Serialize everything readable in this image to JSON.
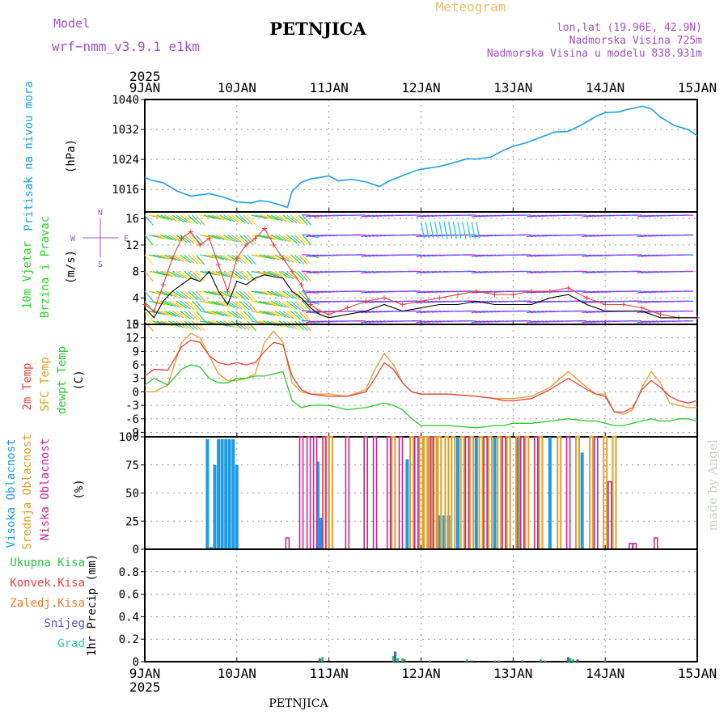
{
  "header": {
    "model_label": "Model",
    "model_name": "wrf−nmm_v3.9.1  e1km",
    "station_title": "PETNJICA",
    "meteogram_label": "Meteogram",
    "lonlat": "lon,lat (19.96E, 42.9N)",
    "altitude": "Nadmorska Visina 725m",
    "model_altitude": "Nadmorska Visina u modelu 838.931m",
    "year": "2025",
    "footer_station": "PETNJICA",
    "watermark": "made by Angel"
  },
  "colors": {
    "pressure": "#1ea0e6",
    "temp2m": "#e8403c",
    "sfc_temp": "#dca028",
    "dewpoint": "#28c828",
    "high_cloud": "#1e9be6",
    "mid_cloud": "#dca028",
    "low_cloud": "#c8288c",
    "precip_total": "#28c83c",
    "precip_conv": "#e8403c",
    "precip_frz": "#f0782a",
    "snow": "#5050dc",
    "hail": "#28c8b4",
    "wind_label": "#2ad22a",
    "grid": "#999999"
  },
  "chart_data": [
    {
      "type": "line",
      "panel": "pressure",
      "ylabels": [
        "Pritisak na nivou mora"
      ],
      "unit": "(hPa)",
      "x_ticks": [
        "9JAN",
        "10JAN",
        "11JAN",
        "12JAN",
        "13JAN",
        "14JAN",
        "15JAN"
      ],
      "xlim": [
        0,
        6
      ],
      "ylim": [
        1010,
        1040
      ],
      "y_ticks": [
        1016,
        1024,
        1032,
        1040
      ],
      "grid": true,
      "series": [
        {
          "x": [
            0,
            0.08,
            0.2,
            0.35,
            0.5,
            0.7,
            0.85,
            1.0,
            1.15,
            1.25,
            1.35,
            1.45,
            1.55,
            1.6,
            1.7,
            1.8,
            1.9,
            2.0,
            2.1,
            2.25,
            2.4,
            2.55,
            2.65,
            2.8,
            2.95,
            3.05,
            3.2,
            3.35,
            3.5,
            3.6,
            3.75,
            3.9,
            4.0,
            4.15,
            4.3,
            4.45,
            4.6,
            4.75,
            4.9,
            5.0,
            5.15,
            5.25,
            5.3,
            5.4,
            5.5,
            5.6,
            5.75,
            5.9,
            6.0
          ],
          "values": [
            1019.2,
            1018.4,
            1017.8,
            1015.6,
            1014.2,
            1014.9,
            1014.0,
            1012.7,
            1012.4,
            1013.0,
            1012.7,
            1012.0,
            1011.2,
            1015.5,
            1017.9,
            1018.8,
            1019.2,
            1019.6,
            1018.3,
            1018.7,
            1018.0,
            1016.8,
            1018.2,
            1019.7,
            1021.1,
            1021.6,
            1022.1,
            1023.1,
            1024.2,
            1024.1,
            1024.6,
            1026.5,
            1027.5,
            1028.5,
            1029.9,
            1031.3,
            1031.5,
            1033.3,
            1035.5,
            1036.5,
            1036.7,
            1037.4,
            1037.6,
            1038.2,
            1037.5,
            1035.3,
            1033.1,
            1032.0,
            1030.3
          ]
        }
      ]
    },
    {
      "type": "line",
      "panel": "wind",
      "ylabels": [
        "10m Vjetar",
        "Brzina i Pravac"
      ],
      "unit": "(m/s)",
      "compass": [
        "N",
        "W",
        "S",
        "E"
      ],
      "xlim": [
        0,
        6
      ],
      "ylim": [
        0,
        17
      ],
      "y_ticks": [
        0,
        4,
        8,
        12,
        16
      ],
      "grid": true,
      "series": [
        {
          "name": "speed",
          "x": [
            0,
            0.1,
            0.2,
            0.3,
            0.4,
            0.5,
            0.6,
            0.7,
            0.8,
            0.9,
            1.0,
            1.1,
            1.2,
            1.3,
            1.4,
            1.5,
            1.6,
            1.7,
            1.8,
            1.9,
            2.0,
            2.2,
            2.4,
            2.6,
            2.8,
            3.0,
            3.2,
            3.4,
            3.6,
            3.8,
            4.0,
            4.2,
            4.4,
            4.6,
            4.8,
            5.0,
            5.2,
            5.4,
            5.6,
            5.8,
            6.0
          ],
          "values": [
            2.5,
            1.0,
            3.5,
            5.0,
            6.0,
            7.0,
            6.5,
            8.0,
            5.0,
            3.0,
            6.5,
            6.0,
            7.0,
            7.5,
            7.2,
            7.0,
            5.0,
            4.0,
            2.5,
            1.5,
            1.0,
            1.5,
            2.0,
            3.0,
            2.0,
            2.5,
            3.0,
            3.0,
            3.5,
            3.0,
            3.0,
            3.0,
            4.0,
            4.5,
            3.0,
            2.0,
            2.0,
            2.0,
            1.0,
            1.0,
            1.0
          ]
        },
        {
          "name": "gust",
          "x": [
            0,
            0.1,
            0.2,
            0.3,
            0.4,
            0.5,
            0.6,
            0.7,
            0.8,
            0.9,
            1.0,
            1.1,
            1.2,
            1.3,
            1.4,
            1.5,
            1.6,
            1.7,
            1.8,
            1.9,
            2.0,
            2.2,
            2.4,
            2.6,
            2.8,
            3.0,
            3.2,
            3.4,
            3.6,
            3.8,
            4.0,
            4.2,
            4.4,
            4.6,
            4.8,
            5.0,
            5.2,
            5.4,
            5.6,
            5.8,
            6.0
          ],
          "values": [
            3.0,
            2.0,
            6.0,
            10.0,
            13.0,
            14.0,
            12.0,
            13.0,
            9.0,
            5.0,
            10.0,
            12.0,
            13.0,
            14.5,
            12.0,
            10.0,
            8.0,
            6.0,
            3.0,
            2.0,
            1.5,
            2.5,
            3.5,
            4.0,
            3.0,
            3.5,
            4.0,
            4.5,
            5.0,
            4.5,
            4.5,
            5.0,
            5.0,
            5.5,
            4.0,
            3.0,
            3.0,
            2.5,
            1.5,
            1.0,
            1.0
          ]
        }
      ],
      "wind_levels": [
        0.5,
        2,
        3.5,
        5,
        8,
        10.5,
        13.5,
        16.5
      ]
    },
    {
      "type": "line",
      "panel": "temperature",
      "ylabels": [
        "2m Temp",
        "SFC Temp",
        "dewpt Temp"
      ],
      "unit": "(C)",
      "xlim": [
        0,
        6
      ],
      "ylim": [
        -10,
        15
      ],
      "y_ticks": [
        -9,
        -6,
        -3,
        0,
        3,
        6,
        9,
        12,
        15
      ],
      "grid": true,
      "series": [
        {
          "name": "2m Temp",
          "x": [
            0,
            0.1,
            0.25,
            0.4,
            0.5,
            0.6,
            0.7,
            0.8,
            0.9,
            1.0,
            1.1,
            1.2,
            1.3,
            1.4,
            1.5,
            1.6,
            1.7,
            1.8,
            2.0,
            2.2,
            2.4,
            2.5,
            2.6,
            2.7,
            2.8,
            2.9,
            3.0,
            3.3,
            3.6,
            3.8,
            3.9,
            4.0,
            4.2,
            4.4,
            4.6,
            4.8,
            4.9,
            5.0,
            5.1,
            5.2,
            5.3,
            5.4,
            5.5,
            5.6,
            5.7,
            5.8,
            5.9,
            6.0
          ],
          "values": [
            3.5,
            5.0,
            4.8,
            10.0,
            11.5,
            11.0,
            8.0,
            6.5,
            6.0,
            6.5,
            6.0,
            6.5,
            9.0,
            11.0,
            10.5,
            3.5,
            0.5,
            -0.5,
            -1.0,
            -1.0,
            0.0,
            3.0,
            6.5,
            5.0,
            2.0,
            0.0,
            -0.5,
            -0.5,
            -1.0,
            -1.5,
            -2.0,
            -2.0,
            -1.5,
            0.5,
            3.0,
            0.5,
            -0.5,
            -1.0,
            -4.5,
            -4.5,
            -3.5,
            0.5,
            2.5,
            1.0,
            -1.0,
            -2.0,
            -2.5,
            -2.0
          ]
        },
        {
          "name": "SFC Temp",
          "x": [
            0,
            0.1,
            0.25,
            0.4,
            0.5,
            0.6,
            0.7,
            0.8,
            0.9,
            1.0,
            1.1,
            1.2,
            1.3,
            1.4,
            1.5,
            1.6,
            1.7,
            1.8,
            2.0,
            2.2,
            2.4,
            2.5,
            2.6,
            2.7,
            2.8,
            2.9,
            3.0,
            3.3,
            3.6,
            3.8,
            3.9,
            4.0,
            4.2,
            4.4,
            4.6,
            4.8,
            4.9,
            5.0,
            5.1,
            5.2,
            5.3,
            5.4,
            5.5,
            5.6,
            5.7,
            5.8,
            5.9,
            6.0
          ],
          "values": [
            0.0,
            0.0,
            1.5,
            11.0,
            13.0,
            12.0,
            8.0,
            4.0,
            2.5,
            2.5,
            3.0,
            4.0,
            11.0,
            13.5,
            11.0,
            2.0,
            0.0,
            -0.5,
            -0.5,
            -1.0,
            0.5,
            5.0,
            8.5,
            6.0,
            2.0,
            0.0,
            -0.5,
            -0.5,
            -1.0,
            -1.5,
            -1.5,
            -1.5,
            -1.0,
            1.0,
            4.5,
            1.0,
            -0.5,
            -0.5,
            -4.5,
            -5.0,
            -4.0,
            1.0,
            4.5,
            2.0,
            -2.5,
            -3.0,
            -3.5,
            -3.5
          ]
        },
        {
          "name": "dewpt Temp",
          "x": [
            0,
            0.1,
            0.25,
            0.4,
            0.5,
            0.6,
            0.7,
            0.8,
            0.9,
            1.0,
            1.1,
            1.2,
            1.3,
            1.4,
            1.5,
            1.6,
            1.7,
            1.8,
            2.0,
            2.2,
            2.4,
            2.5,
            2.6,
            2.7,
            2.8,
            2.9,
            3.0,
            3.3,
            3.6,
            3.8,
            3.9,
            4.0,
            4.2,
            4.4,
            4.6,
            4.8,
            4.9,
            5.0,
            5.1,
            5.2,
            5.3,
            5.4,
            5.5,
            5.6,
            5.7,
            5.8,
            5.9,
            6.0
          ],
          "values": [
            1.5,
            3.0,
            1.5,
            5.0,
            6.0,
            5.5,
            3.0,
            2.0,
            2.0,
            3.0,
            3.0,
            3.5,
            3.5,
            4.0,
            4.5,
            -2.0,
            -3.5,
            -3.0,
            -3.0,
            -4.0,
            -3.5,
            -3.0,
            -2.5,
            -3.0,
            -4.0,
            -6.0,
            -7.5,
            -7.5,
            -8.0,
            -7.5,
            -7.5,
            -7.0,
            -7.0,
            -6.5,
            -6.0,
            -6.5,
            -6.5,
            -7.0,
            -7.5,
            -7.5,
            -7.0,
            -6.5,
            -6.0,
            -6.5,
            -6.5,
            -6.0,
            -6.0,
            -6.5
          ]
        }
      ]
    },
    {
      "type": "bar",
      "panel": "cloud",
      "ylabels": [
        "Visoka Oblacnost",
        "Srednja Oblacnost",
        "Niska Oblacnost"
      ],
      "unit": "(%)",
      "xlim": [
        0,
        6
      ],
      "ylim": [
        0,
        100
      ],
      "y_ticks": [
        0,
        25,
        50,
        75,
        100
      ],
      "grid": true,
      "series": [
        {
          "name": "Visoka Oblacnost",
          "x": [
            0.68,
            0.72,
            0.76,
            0.8,
            0.84,
            0.88,
            0.92,
            0.96,
            1.0,
            1.88,
            1.9,
            1.92,
            2.85,
            3.2,
            3.25,
            3.3,
            3.4,
            3.6,
            3.8,
            4.05,
            4.4,
            4.75
          ],
          "values": [
            98,
            2,
            75,
            98,
            98,
            98,
            98,
            98,
            75,
            78,
            28,
            28,
            80,
            30,
            30,
            30,
            100,
            100,
            100,
            100,
            100,
            86
          ]
        },
        {
          "name": "Srednja Oblacnost",
          "x": [
            1.98,
            2.02,
            2.7,
            2.9,
            3.0,
            3.05,
            3.1,
            3.15,
            3.2,
            3.28,
            3.35,
            3.45,
            3.55,
            3.65,
            3.75,
            3.85,
            3.95,
            4.05,
            4.15,
            4.3,
            4.5,
            4.7,
            4.85,
            5.0,
            5.1
          ],
          "values": [
            100,
            100,
            100,
            100,
            100,
            100,
            100,
            100,
            100,
            100,
            100,
            100,
            100,
            100,
            100,
            100,
            100,
            100,
            100,
            100,
            100,
            100,
            100,
            100,
            100
          ]
        },
        {
          "name": "Niska Oblacnost",
          "x": [
            1.55,
            1.7,
            1.78,
            1.85,
            1.95,
            2.2,
            2.4,
            2.5,
            2.65,
            2.78,
            2.95,
            3.12,
            3.5,
            3.7,
            3.9,
            4.1,
            4.25,
            4.6,
            4.9,
            5.05,
            5.28,
            5.32,
            5.55
          ],
          "values": [
            10,
            100,
            100,
            100,
            100,
            100,
            100,
            100,
            100,
            100,
            100,
            100,
            100,
            100,
            100,
            100,
            100,
            100,
            100,
            60,
            5,
            5,
            10
          ]
        }
      ]
    },
    {
      "type": "bar",
      "panel": "precip",
      "ylabels": [
        "Ukupna Kisa",
        "Konvek.Kisa",
        "Zaledj.Kisa",
        "Snijeg",
        "Grad"
      ],
      "unit": "1hr Precip (mm)",
      "x_ticks": [
        "9JAN",
        "10JAN",
        "11JAN",
        "12JAN",
        "13JAN",
        "14JAN",
        "15JAN"
      ],
      "xlim": [
        0,
        6
      ],
      "ylim": [
        0,
        1.0
      ],
      "y_ticks": [
        0,
        0.2,
        0.4,
        0.6,
        0.8
      ],
      "grid": true,
      "series": [
        {
          "name": "Ukupna Kisa",
          "x": [
            1.9,
            1.93,
            2.7,
            2.72,
            2.75,
            2.8,
            2.82,
            3.1,
            3.5,
            3.55,
            3.8,
            3.85,
            4.1,
            4.3,
            4.35,
            4.6,
            4.62,
            4.65,
            4.7,
            5.0
          ],
          "values": [
            0.03,
            0.04,
            0.05,
            0.09,
            0.03,
            0.03,
            0.02,
            0.01,
            0.02,
            0.01,
            0.01,
            0.01,
            0.01,
            0.02,
            0.01,
            0.04,
            0.03,
            0.02,
            0.02,
            0.01
          ]
        }
      ]
    }
  ]
}
